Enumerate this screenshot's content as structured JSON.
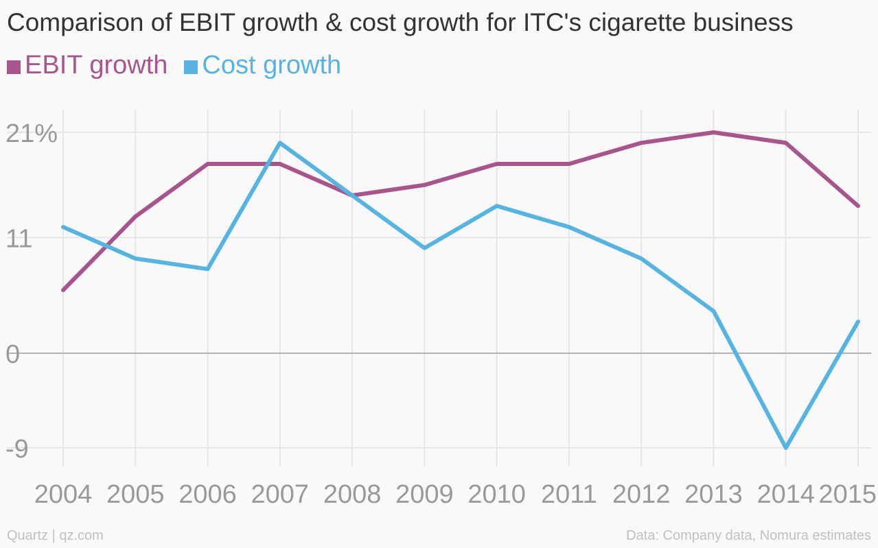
{
  "chart_data": {
    "type": "line",
    "title": "Comparison of EBIT growth & cost growth for ITC's cigarette business",
    "categories": [
      "2004",
      "2005",
      "2006",
      "2007",
      "2008",
      "2009",
      "2010",
      "2011",
      "2012",
      "2013",
      "2014",
      "2015"
    ],
    "series": [
      {
        "name": "EBIT growth",
        "color": "#a8558b",
        "values": [
          6,
          13,
          18,
          18,
          15,
          16,
          18,
          18,
          20,
          21,
          20,
          14
        ]
      },
      {
        "name": "Cost growth",
        "color": "#56b4e2",
        "values": [
          12,
          9,
          8,
          20,
          15,
          10,
          14,
          12,
          9,
          4,
          -9,
          3
        ]
      }
    ],
    "y_ticks": [
      {
        "value": 21,
        "label": "21%"
      },
      {
        "value": 11,
        "label": "11"
      },
      {
        "value": 0,
        "label": "0"
      },
      {
        "value": -9,
        "label": "-9"
      }
    ],
    "ylim": [
      -10,
      22
    ],
    "grid": true,
    "legend_position": "top-left",
    "source": "Data: Company data, Nomura estimates",
    "credit": "Quartz | qz.com"
  }
}
